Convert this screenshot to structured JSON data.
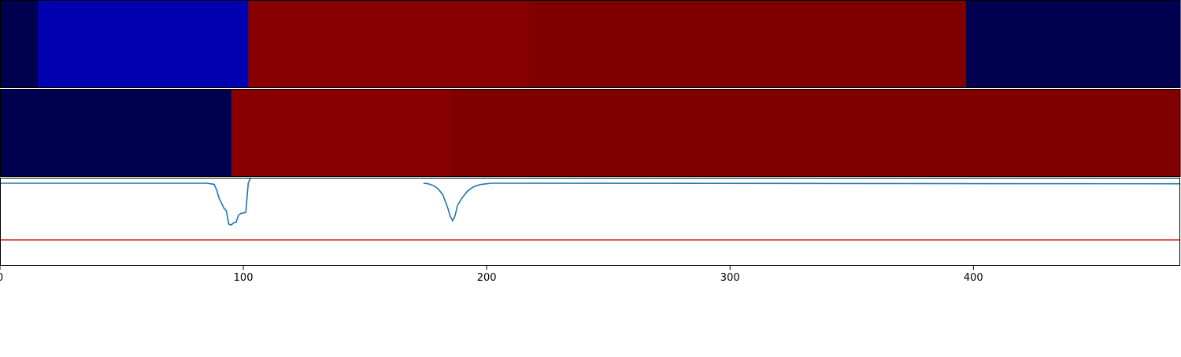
{
  "chart_data": [
    {
      "type": "heatmap",
      "x_range": [
        0,
        485
      ],
      "segments": [
        {
          "x0": 0,
          "x1": 15.5,
          "color": "#000050"
        },
        {
          "x0": 15.5,
          "x1": 102,
          "color": "#0000b0"
        },
        {
          "x0": 102,
          "x1": 217,
          "color": "#880000"
        },
        {
          "x0": 217,
          "x1": 397,
          "color": "#800000"
        },
        {
          "x0": 397,
          "x1": 485,
          "color": "#000050"
        }
      ]
    },
    {
      "type": "heatmap",
      "x_range": [
        0,
        485
      ],
      "segments": [
        {
          "x0": 0,
          "x1": 95,
          "color": "#000050"
        },
        {
          "x0": 95,
          "x1": 185,
          "color": "#880000"
        },
        {
          "x0": 185,
          "x1": 485,
          "color": "#7f0000"
        }
      ]
    },
    {
      "type": "line",
      "xlim": [
        0,
        485
      ],
      "ylim": [
        -1.5,
        0.1
      ],
      "xticks": [
        0,
        100,
        200,
        300,
        400
      ],
      "xtick_labels": [
        "0",
        "100",
        "200",
        "300",
        "400"
      ],
      "series": [
        {
          "color": "#1f77b4",
          "points": [
            [
              0,
              0
            ],
            [
              85,
              0
            ],
            [
              88,
              -0.02
            ],
            [
              89,
              -0.12
            ],
            [
              90,
              -0.27
            ],
            [
              91,
              -0.36
            ],
            [
              92,
              -0.45
            ],
            [
              93,
              -0.5
            ],
            [
              94,
              -0.74
            ],
            [
              95,
              -0.76
            ],
            [
              96,
              -0.72
            ],
            [
              97,
              -0.71
            ],
            [
              98,
              -0.58
            ],
            [
              99,
              -0.55
            ],
            [
              100,
              -0.54
            ],
            [
              101,
              -0.53
            ],
            [
              102,
              0
            ],
            [
              103,
              0.1
            ]
          ]
        },
        {
          "color": "#1f77b4",
          "points": [
            [
              174,
              0
            ],
            [
              176,
              -0.01
            ],
            [
              178,
              -0.04
            ],
            [
              180,
              -0.1
            ],
            [
              182,
              -0.21
            ],
            [
              184,
              -0.45
            ],
            [
              185,
              -0.6
            ],
            [
              186,
              -0.68
            ],
            [
              187,
              -0.59
            ],
            [
              188,
              -0.4
            ],
            [
              190,
              -0.26
            ],
            [
              192,
              -0.15
            ],
            [
              194,
              -0.08
            ],
            [
              196,
              -0.04
            ],
            [
              198,
              -0.02
            ],
            [
              200,
              -0.01
            ],
            [
              202,
              0
            ],
            [
              485,
              -0.01
            ]
          ]
        },
        {
          "color": "#d62728",
          "points": [
            [
              0,
              -1.03
            ],
            [
              485,
              -1.03
            ]
          ]
        }
      ]
    }
  ]
}
